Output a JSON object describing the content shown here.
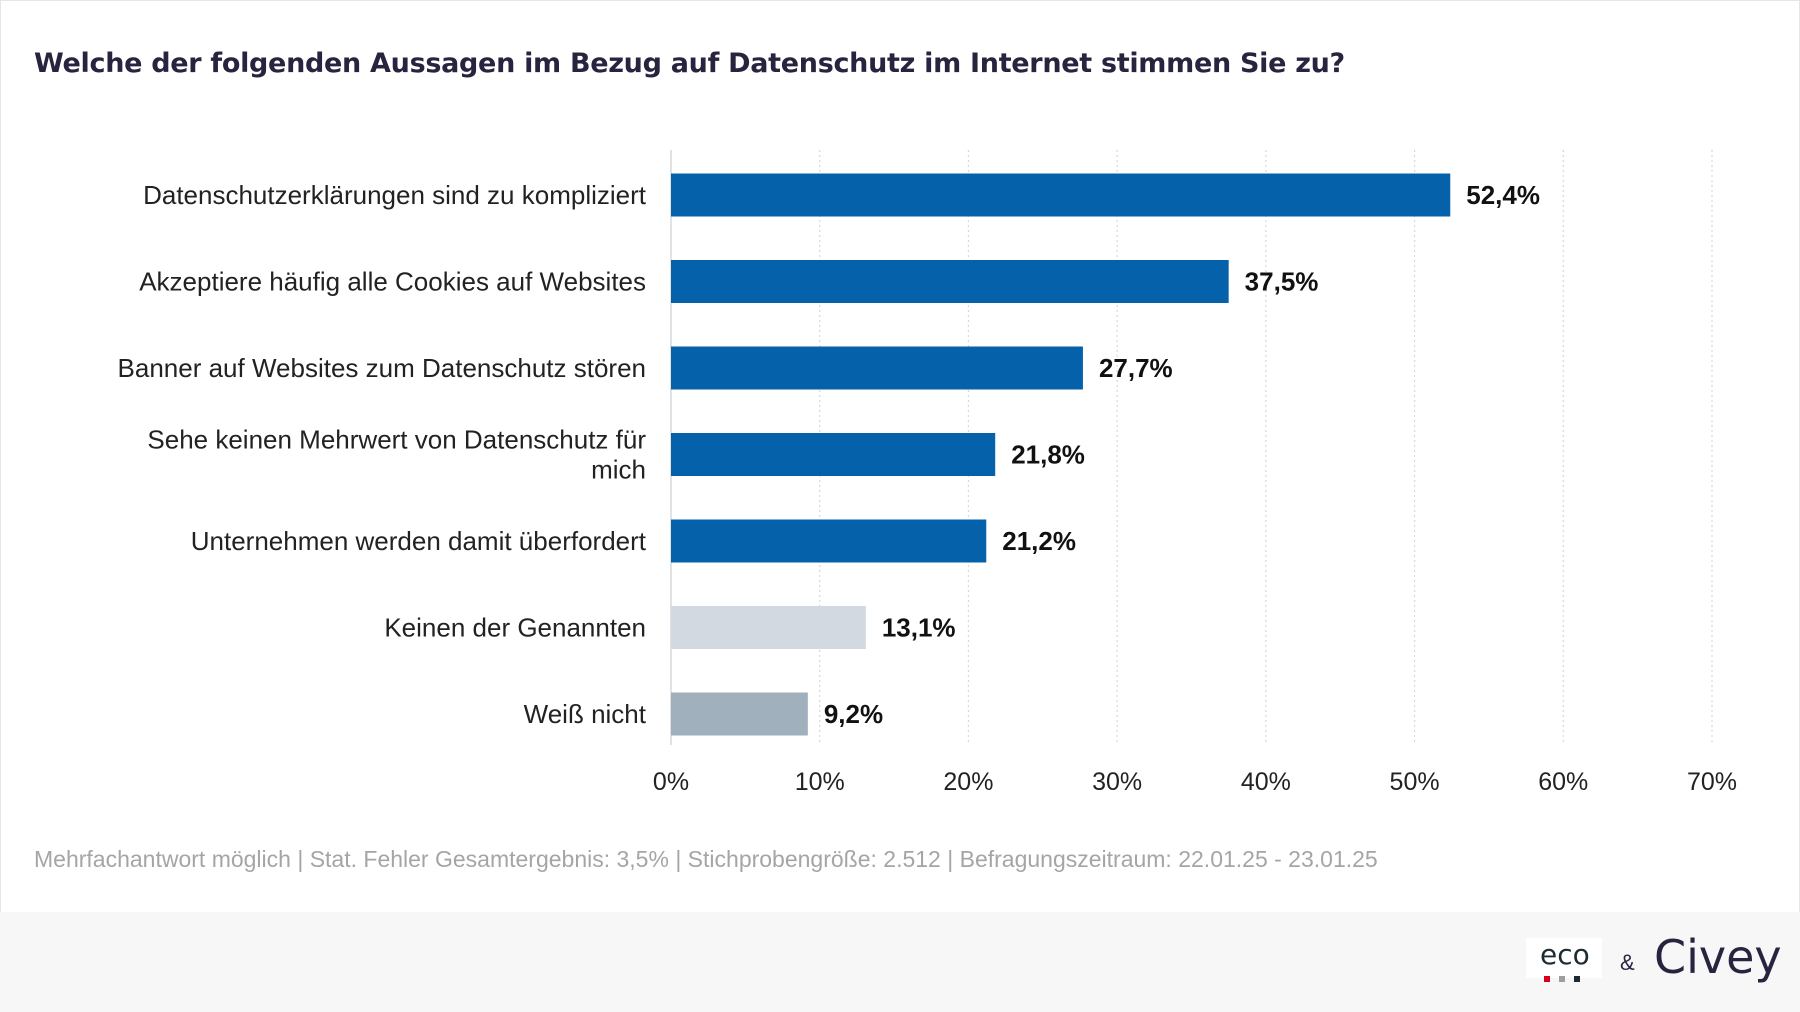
{
  "title": "Welche der folgenden Aussagen im Bezug auf Datenschutz im Internet stimmen Sie zu?",
  "chart_data": {
    "type": "bar",
    "orientation": "horizontal",
    "categories": [
      "Datenschutzerklärungen sind zu kompliziert",
      "Akzeptiere häufig alle Cookies auf Websites",
      "Banner auf Websites zum Datenschutz stören",
      "Sehe keinen Mehrwert von Datenschutz für mich",
      "Unternehmen werden damit überfordert",
      "Keinen der Genannten",
      "Weiß nicht"
    ],
    "category_lines": [
      [
        "Datenschutzerklärungen sind zu kompliziert"
      ],
      [
        "Akzeptiere häufig alle Cookies auf Websites"
      ],
      [
        "Banner auf Websites zum Datenschutz stören"
      ],
      [
        "Sehe keinen Mehrwert von Datenschutz für",
        "mich"
      ],
      [
        "Unternehmen werden damit überfordert"
      ],
      [
        "Keinen der Genannten"
      ],
      [
        "Weiß nicht"
      ]
    ],
    "values": [
      52.4,
      37.5,
      27.7,
      21.8,
      21.2,
      13.1,
      9.2
    ],
    "value_labels": [
      "52,4%",
      "37,5%",
      "27,7%",
      "21,8%",
      "21,2%",
      "13,1%",
      "9,2%"
    ],
    "bar_colors": [
      "#0561a9",
      "#0561a9",
      "#0561a9",
      "#0561a9",
      "#0561a9",
      "#d2d9e0",
      "#a0b0bd"
    ],
    "xlim": [
      0,
      70
    ],
    "x_ticks": [
      0,
      10,
      20,
      30,
      40,
      50,
      60,
      70
    ],
    "x_tick_labels": [
      "0%",
      "10%",
      "20%",
      "30%",
      "40%",
      "50%",
      "60%",
      "70%"
    ],
    "grid": "vertical dotted",
    "legend": "none"
  },
  "footnote": "Mehrfachantwort möglich | Stat. Fehler Gesamtergebnis: 3,5% | Stichprobengröße: 2.512 | Befragungszeitraum: 22.01.25 - 23.01.25",
  "logos": {
    "eco": "eco",
    "ampersand": "&",
    "civey": "Civey",
    "eco_dot_colors": [
      "#d6001c",
      "#9e9e9e",
      "#1e2b33"
    ]
  }
}
